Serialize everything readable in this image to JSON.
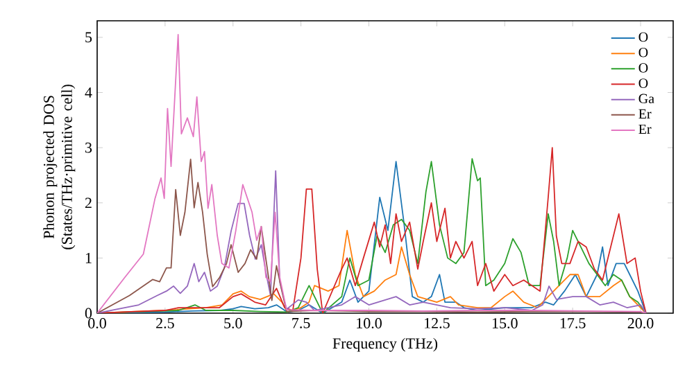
{
  "chart_data": {
    "type": "line",
    "xlabel": "Frequency (THz)",
    "ylabel": "Phonon projected DOS (States/THz·primitive cell)",
    "xlim": [
      0,
      21.2
    ],
    "ylim": [
      0,
      5.3
    ],
    "xticks": [
      {
        "value": 0,
        "label": "0.0"
      },
      2.5,
      {
        "value": 5,
        "label": "5.0"
      },
      7.5,
      {
        "value": 10,
        "label": "10.0"
      },
      12.5,
      {
        "value": 15,
        "label": "15.0"
      },
      17.5,
      {
        "value": 20,
        "label": "20.0"
      }
    ],
    "yticks": [
      0,
      1,
      2,
      3,
      4,
      5
    ],
    "legend": "top right",
    "marker": "none",
    "line_style": "solid",
    "series": [
      {
        "name": "O",
        "color": "#1f77b4",
        "x": [
          0,
          2.5,
          3.5,
          4.5,
          5.0,
          5.3,
          5.8,
          6.3,
          6.6,
          7.0,
          7.4,
          7.8,
          8.3,
          9.0,
          9.3,
          9.6,
          10.0,
          10.4,
          10.7,
          11.0,
          11.3,
          11.6,
          12.0,
          12.3,
          12.6,
          12.8,
          13.2,
          13.5,
          14.0,
          15.0,
          16.0,
          16.5,
          16.8,
          17.2,
          17.6,
          18.0,
          18.4,
          18.6,
          18.8,
          19.1,
          19.4,
          19.6,
          19.9,
          20.2
        ],
        "values": [
          0,
          0.02,
          0.04,
          0.05,
          0.08,
          0.12,
          0.08,
          0.1,
          0.15,
          0.02,
          0.05,
          0.15,
          0.0,
          0.2,
          0.6,
          0.2,
          0.4,
          2.1,
          1.5,
          2.75,
          1.6,
          0.3,
          0.2,
          0.3,
          0.7,
          0.2,
          0.2,
          0.1,
          0.05,
          0.1,
          0.1,
          0.2,
          0.15,
          0.4,
          0.7,
          0.3,
          0.7,
          1.2,
          0.5,
          0.9,
          0.9,
          0.7,
          0.4,
          0.0
        ]
      },
      {
        "name": "O",
        "color": "#ff7f0e",
        "x": [
          0,
          2.5,
          4.0,
          4.6,
          5.0,
          5.3,
          5.6,
          6.0,
          6.5,
          6.8,
          7.0,
          7.5,
          7.8,
          8.0,
          8.5,
          8.9,
          9.2,
          9.5,
          9.8,
          10.2,
          10.6,
          11.0,
          11.2,
          11.5,
          11.8,
          12.5,
          13.0,
          13.3,
          14.0,
          14.5,
          15.0,
          15.3,
          15.7,
          16.2,
          16.6,
          17.0,
          17.4,
          17.7,
          18.0,
          18.5,
          19.0,
          19.3,
          19.6,
          20.0,
          20.2
        ],
        "values": [
          0,
          0.05,
          0.1,
          0.15,
          0.35,
          0.4,
          0.3,
          0.25,
          0.35,
          0.2,
          0.02,
          0.1,
          0.2,
          0.5,
          0.4,
          0.5,
          1.5,
          0.7,
          0.3,
          0.4,
          0.6,
          0.7,
          1.2,
          0.7,
          0.3,
          0.2,
          0.3,
          0.15,
          0.1,
          0.1,
          0.3,
          0.4,
          0.2,
          0.1,
          0.3,
          0.5,
          0.7,
          0.7,
          0.3,
          0.3,
          0.5,
          0.6,
          0.3,
          0.1,
          0.0
        ]
      },
      {
        "name": "O",
        "color": "#2ca02c",
        "x": [
          0,
          3.0,
          3.6,
          4.0,
          5.0,
          6.0,
          7.0,
          7.4,
          7.8,
          8.0,
          8.3,
          9.0,
          9.3,
          9.6,
          10.0,
          10.3,
          10.6,
          10.9,
          11.2,
          11.5,
          11.8,
          12.1,
          12.3,
          12.6,
          12.9,
          13.2,
          13.5,
          13.8,
          14.0,
          14.1,
          14.3,
          14.6,
          15.0,
          15.3,
          15.6,
          15.9,
          16.3,
          16.6,
          16.8,
          17.0,
          17.3,
          17.5,
          17.8,
          18.1,
          18.4,
          18.7,
          19.0,
          19.3,
          19.6,
          19.9,
          20.2
        ],
        "values": [
          0,
          0.05,
          0.15,
          0.05,
          0.05,
          0.03,
          0.02,
          0.1,
          0.5,
          0.3,
          0.0,
          0.3,
          1.0,
          0.5,
          0.6,
          1.4,
          1.1,
          1.6,
          1.7,
          1.5,
          0.9,
          2.2,
          2.75,
          1.6,
          1.0,
          0.9,
          1.1,
          2.8,
          2.4,
          2.45,
          0.5,
          0.6,
          0.9,
          1.35,
          1.1,
          0.5,
          0.5,
          1.8,
          1.3,
          0.5,
          1.0,
          1.5,
          1.2,
          0.9,
          0.7,
          0.5,
          0.7,
          0.6,
          0.3,
          0.2,
          0.0
        ]
      },
      {
        "name": "O",
        "color": "#d62728",
        "x": [
          0,
          2.5,
          3.0,
          4.5,
          5.0,
          5.3,
          5.8,
          6.2,
          6.6,
          6.9,
          7.2,
          7.5,
          7.7,
          7.9,
          8.1,
          8.3,
          9.0,
          9.2,
          9.5,
          9.8,
          10.2,
          10.4,
          10.6,
          10.8,
          11.0,
          11.2,
          11.5,
          11.8,
          12.0,
          12.3,
          12.5,
          12.8,
          13.0,
          13.2,
          13.5,
          13.8,
          14.0,
          14.3,
          14.6,
          15.0,
          15.3,
          15.7,
          16.0,
          16.3,
          16.6,
          16.75,
          16.9,
          17.1,
          17.4,
          17.7,
          18.0,
          18.3,
          18.6,
          18.9,
          19.2,
          19.5,
          19.8,
          20.0,
          20.2
        ],
        "values": [
          0,
          0.05,
          0.1,
          0.1,
          0.3,
          0.35,
          0.2,
          0.15,
          0.45,
          0.1,
          0.05,
          1.0,
          2.25,
          2.25,
          0.8,
          0.0,
          0.8,
          1.0,
          0.5,
          1.0,
          1.65,
          1.2,
          1.6,
          0.9,
          1.8,
          1.3,
          1.65,
          0.8,
          1.3,
          2.0,
          1.3,
          1.9,
          1.0,
          1.3,
          1.0,
          1.3,
          0.5,
          0.9,
          0.4,
          0.7,
          0.5,
          0.6,
          0.5,
          0.4,
          2.1,
          3.0,
          1.4,
          0.9,
          0.9,
          1.3,
          1.2,
          0.8,
          0.6,
          1.2,
          1.8,
          0.9,
          1.0,
          0.4,
          0.0
        ]
      },
      {
        "name": "Ga",
        "color": "#9467bd",
        "x": [
          0,
          1.53,
          2.21,
          2.55,
          2.81,
          3.06,
          3.32,
          3.57,
          3.74,
          3.95,
          4.17,
          4.42,
          4.68,
          4.93,
          5.19,
          5.41,
          5.61,
          5.82,
          6.04,
          6.21,
          6.38,
          6.57,
          6.72,
          6.97,
          7.4,
          7.7,
          8.0,
          9.0,
          9.5,
          10.0,
          11.0,
          11.5,
          12.0,
          13.0,
          14.0,
          15.0,
          16.0,
          16.4,
          16.63,
          16.9,
          17.5,
          18.0,
          18.5,
          19.0,
          19.5,
          20.0,
          20.2
        ],
        "values": [
          0,
          0.15,
          0.32,
          0.4,
          0.49,
          0.36,
          0.49,
          0.9,
          0.57,
          0.74,
          0.4,
          0.49,
          0.82,
          1.49,
          1.99,
          1.99,
          1.41,
          0.98,
          1.24,
          0.74,
          0.32,
          2.58,
          0.57,
          0.07,
          0.24,
          0.2,
          0.05,
          0.15,
          0.3,
          0.15,
          0.3,
          0.15,
          0.2,
          0.1,
          0.08,
          0.1,
          0.05,
          0.15,
          0.49,
          0.25,
          0.3,
          0.3,
          0.15,
          0.2,
          0.1,
          0.15,
          0.0
        ]
      },
      {
        "name": "Er",
        "color": "#8c564b",
        "x": [
          0,
          1.19,
          2.04,
          2.3,
          2.55,
          2.72,
          2.89,
          3.06,
          3.23,
          3.44,
          3.57,
          3.71,
          3.88,
          4.05,
          4.25,
          4.51,
          4.76,
          4.93,
          5.19,
          5.44,
          5.65,
          5.87,
          6.04,
          6.21,
          6.43,
          6.6,
          6.8,
          6.97,
          8.0,
          10.0,
          12.0,
          14.0,
          16.0,
          18.0,
          20.0,
          20.2
        ],
        "values": [
          0,
          0.32,
          0.61,
          0.57,
          0.82,
          0.82,
          2.24,
          1.41,
          1.83,
          2.79,
          1.91,
          2.37,
          1.83,
          1.07,
          0.48,
          0.65,
          0.9,
          1.24,
          0.74,
          0.9,
          1.15,
          0.98,
          1.57,
          0.98,
          0.23,
          0.86,
          0.4,
          0.03,
          0.05,
          0.03,
          0.03,
          0.02,
          0.03,
          0.03,
          0.02,
          0.0
        ]
      },
      {
        "name": "Er",
        "color": "#e377c2",
        "x": [
          0,
          1.02,
          1.7,
          2.13,
          2.35,
          2.47,
          2.59,
          2.72,
          2.98,
          3.1,
          3.32,
          3.54,
          3.67,
          3.83,
          3.95,
          4.08,
          4.22,
          4.42,
          4.59,
          4.85,
          5.1,
          5.36,
          5.53,
          5.7,
          5.87,
          6.04,
          6.21,
          6.38,
          6.55,
          6.72,
          6.97,
          8.0,
          10.0,
          12.0,
          14.0,
          16.0,
          18.0,
          20.0,
          20.2
        ],
        "values": [
          0,
          0.65,
          1.07,
          2.08,
          2.45,
          2.08,
          3.71,
          2.66,
          5.05,
          3.25,
          3.54,
          3.2,
          3.92,
          2.75,
          2.93,
          1.9,
          2.33,
          1.41,
          0.9,
          0.82,
          1.49,
          2.33,
          2.08,
          1.83,
          1.32,
          1.57,
          0.65,
          0.57,
          1.83,
          0.65,
          0.06,
          0.05,
          0.05,
          0.04,
          0.05,
          0.05,
          0.04,
          0.03,
          0.0
        ]
      }
    ]
  }
}
